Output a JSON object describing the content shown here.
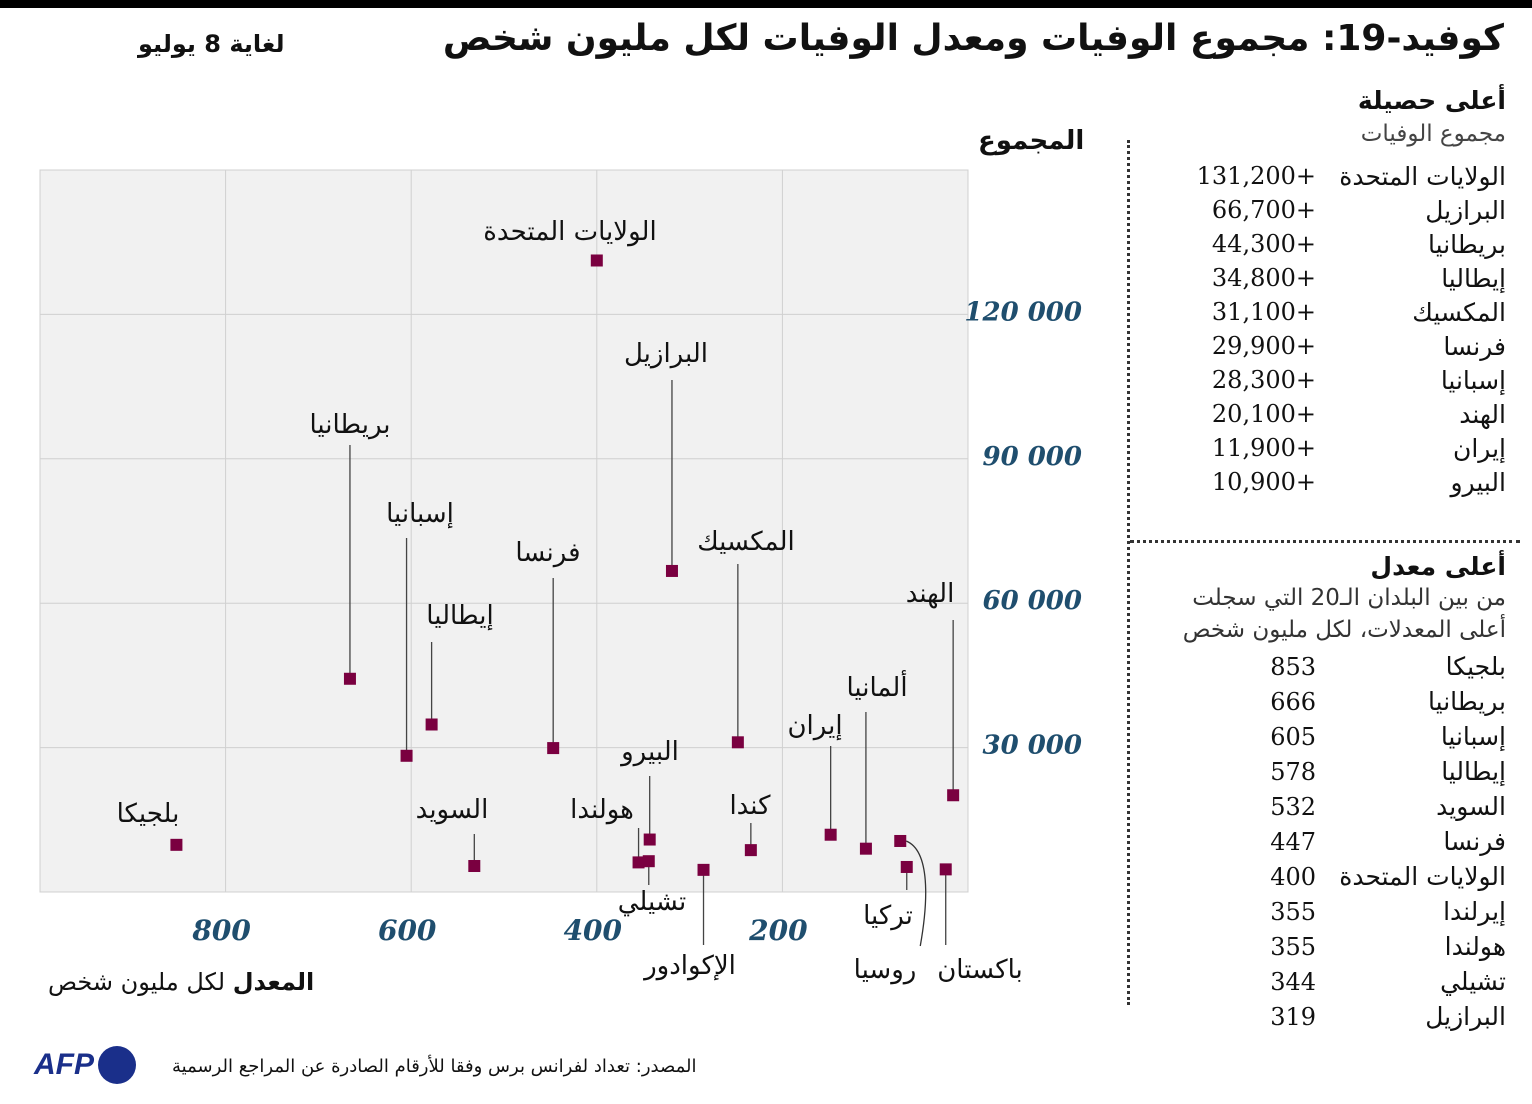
{
  "header": {
    "title": "كوفيد-19: مجموع الوفيات ومعدل الوفيات لكل مليون شخص",
    "date": "لغاية 8 يوليو"
  },
  "chart_data": {
    "type": "scatter",
    "ylabel": "المجموع",
    "xlabel_bold": "المعدل",
    "xlabel_rest": "لكل مليون شخص",
    "xlim": [
      1000,
      0
    ],
    "ylim": [
      0,
      150000
    ],
    "x_reversed": true,
    "grid": true,
    "xticks": [
      800,
      600,
      400,
      200
    ],
    "yticks": [
      {
        "v": 120000,
        "label": "120 000"
      },
      {
        "v": 90000,
        "label": "90 000"
      },
      {
        "v": 60000,
        "label": "60 000"
      },
      {
        "v": 30000,
        "label": "30 000"
      }
    ],
    "marker_color": "#7a0040",
    "tick_color": "#1f4e6e",
    "points": [
      {
        "name": "الولايات المتحدة",
        "x": 400,
        "y": 131200
      },
      {
        "name": "البرازيل",
        "x": 319,
        "y": 66700
      },
      {
        "name": "بريطانيا",
        "x": 666,
        "y": 44300
      },
      {
        "name": "إسبانيا",
        "x": 605,
        "y": 28300
      },
      {
        "name": "إيطاليا",
        "x": 578,
        "y": 34800
      },
      {
        "name": "فرنسا",
        "x": 447,
        "y": 29900
      },
      {
        "name": "المكسيك",
        "x": 248,
        "y": 31100
      },
      {
        "name": "الهند",
        "x": 16,
        "y": 20100
      },
      {
        "name": "ألمانيا",
        "x": 110,
        "y": 9000
      },
      {
        "name": "إيران",
        "x": 148,
        "y": 11900
      },
      {
        "name": "كندا",
        "x": 234,
        "y": 8700
      },
      {
        "name": "البيرو",
        "x": 343,
        "y": 10900
      },
      {
        "name": "هولندا",
        "x": 355,
        "y": 6150
      },
      {
        "name": "تشيلي",
        "x": 344,
        "y": 6400
      },
      {
        "name": "السويد",
        "x": 532,
        "y": 5400
      },
      {
        "name": "بلجيكا",
        "x": 853,
        "y": 9800
      },
      {
        "name": "الإكوادور",
        "x": 285,
        "y": 4600
      },
      {
        "name": "تركيا",
        "x": 66,
        "y": 5200
      },
      {
        "name": "روسيا",
        "x": 73,
        "y": 10600
      },
      {
        "name": "باكستان",
        "x": 24,
        "y": 4700
      }
    ]
  },
  "totals": {
    "heading": "أعلى حصيلة",
    "subheading": "مجموع الوفيات",
    "rows": [
      {
        "country": "الولايات المتحدة",
        "value": "131,200+"
      },
      {
        "country": "البرازيل",
        "value": "66,700+"
      },
      {
        "country": "بريطانيا",
        "value": "44,300+"
      },
      {
        "country": "إيطاليا",
        "value": "34,800+"
      },
      {
        "country": "المكسيك",
        "value": "31,100+"
      },
      {
        "country": "فرنسا",
        "value": "29,900+"
      },
      {
        "country": "إسبانيا",
        "value": "28,300+"
      },
      {
        "country": "الهند",
        "value": "20,100+"
      },
      {
        "country": "إيران",
        "value": "11,900+"
      },
      {
        "country": "البيرو",
        "value": "10,900+"
      }
    ]
  },
  "rates": {
    "heading": "أعلى معدل",
    "subheading1": "من بين البلدان الـ20 التي سجلت",
    "subheading2": "أعلى المعدلات، لكل مليون شخص",
    "rows": [
      {
        "country": "بلجيكا",
        "value": "853"
      },
      {
        "country": "بريطانيا",
        "value": "666"
      },
      {
        "country": "إسبانيا",
        "value": "605"
      },
      {
        "country": "إيطاليا",
        "value": "578"
      },
      {
        "country": "السويد",
        "value": "532"
      },
      {
        "country": "فرنسا",
        "value": "447"
      },
      {
        "country": "الولايات المتحدة",
        "value": "400"
      },
      {
        "country": "إيرلندا",
        "value": "355"
      },
      {
        "country": "هولندا",
        "value": "355"
      },
      {
        "country": "تشيلي",
        "value": "344"
      },
      {
        "country": "البرازيل",
        "value": "319"
      }
    ]
  },
  "footer": {
    "source": "المصدر: تعداد لفرانس برس وفقا للأرقام الصادرة عن المراجع الرسمية",
    "logo": "AFP"
  }
}
